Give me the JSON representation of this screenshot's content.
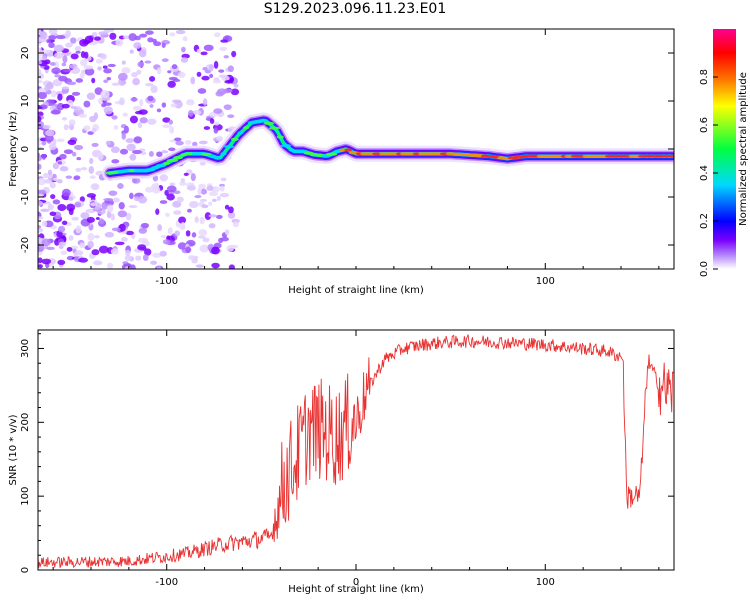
{
  "title": "S129.2023.096.11.23.E01",
  "colors": {
    "line": "#e83232",
    "colormap": [
      "#ffffff",
      "#7a00ff",
      "#0000ff",
      "#00d8ff",
      "#00ff40",
      "#ffff00",
      "#ff6a00",
      "#ff0000",
      "#ff0090"
    ]
  },
  "chart_data": [
    {
      "type": "heatmap",
      "title": "S129.2023.096.11.23.E01",
      "xlabel": "Height of straight line (km)",
      "ylabel": "Frequency (Hz)",
      "xlim": [
        -168,
        168
      ],
      "ylim": [
        -25,
        25
      ],
      "xticks": [
        -100,
        100
      ],
      "yticks": [
        -20,
        -10,
        0,
        10,
        20
      ],
      "colorbar": {
        "label": "Normalized spectral amplitude",
        "range": [
          0,
          1
        ],
        "ticks": [
          "0.0",
          "0.2",
          "0.4",
          "0.6",
          "0.8"
        ]
      },
      "ridge": {
        "x": [
          -130,
          -120,
          -110,
          -100,
          -90,
          -80,
          -72,
          -62,
          -55,
          -48,
          -42,
          -38,
          -33,
          -28,
          -22,
          -15,
          -10,
          -5,
          0,
          10,
          30,
          50,
          70,
          80,
          90,
          110,
          130,
          150,
          168
        ],
        "y": [
          -5,
          -4.5,
          -4.5,
          -3,
          -1,
          -1,
          -2,
          3,
          5.5,
          6,
          4,
          1,
          -0.5,
          -0.5,
          -1.2,
          -1.5,
          -0.5,
          0,
          -1,
          -1,
          -1,
          -1,
          -1.5,
          -2,
          -1.5,
          -1.5,
          -1.5,
          -1.5,
          -1.5
        ]
      },
      "grid": false,
      "legend": "none"
    },
    {
      "type": "line",
      "xlabel": "Height of straight line (km)",
      "ylabel": "SNR (10 * v/v)",
      "xlim": [
        -168,
        168
      ],
      "ylim": [
        0,
        325
      ],
      "xticks": [
        -100,
        0,
        100
      ],
      "yticks": [
        0,
        100,
        200,
        300
      ],
      "trend": {
        "x": [
          -168,
          -120,
          -90,
          -70,
          -55,
          -45,
          -38,
          -32,
          -25,
          -18,
          -10,
          -3,
          0,
          5,
          15,
          25,
          35,
          45,
          60,
          80,
          100,
          120,
          133,
          138,
          141,
          143,
          150,
          154,
          157,
          160,
          168
        ],
        "y": [
          10,
          12,
          22,
          35,
          40,
          45,
          120,
          150,
          190,
          190,
          180,
          200,
          200,
          240,
          285,
          300,
          305,
          308,
          310,
          308,
          305,
          300,
          296,
          290,
          290,
          100,
          100,
          280,
          270,
          250,
          240
        ]
      },
      "grid": false,
      "legend": "none"
    }
  ]
}
